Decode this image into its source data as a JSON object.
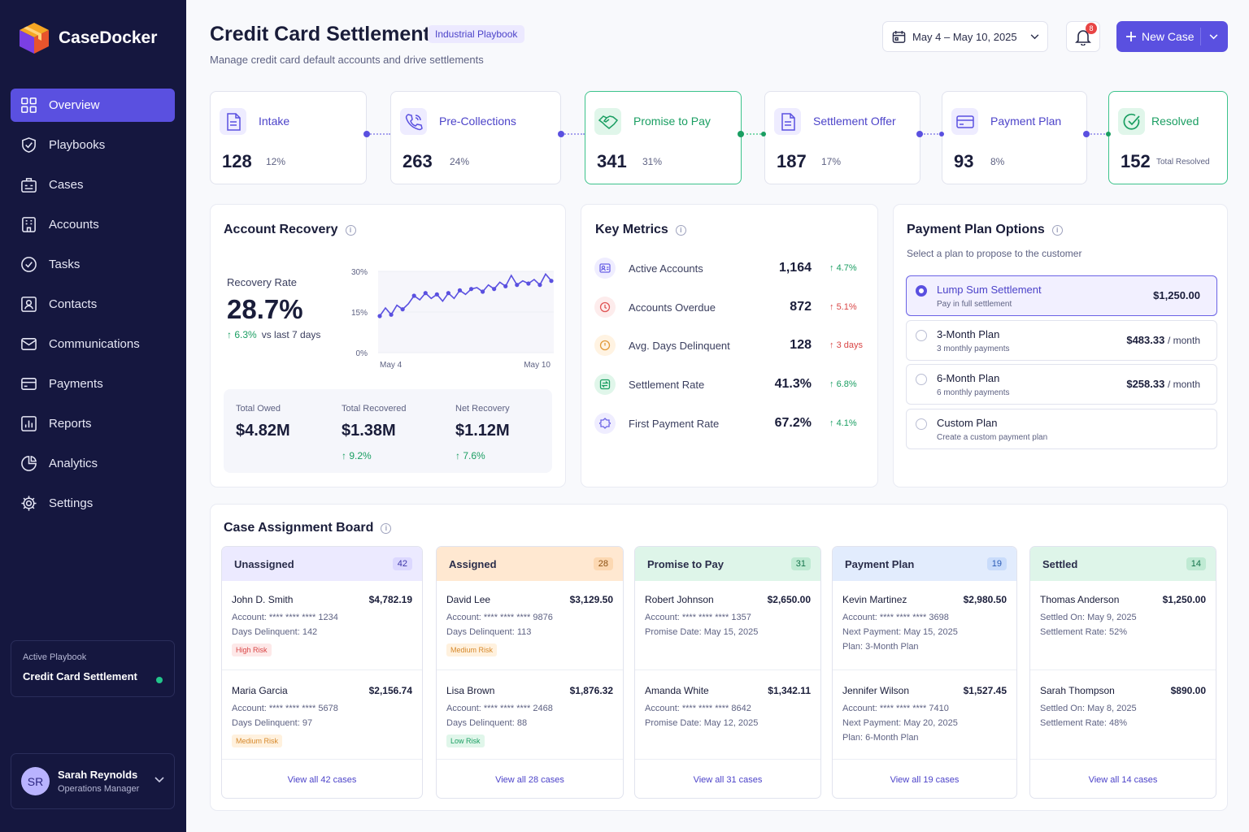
{
  "app": {
    "name": "CaseDocker"
  },
  "nav": {
    "items": [
      {
        "label": "Overview"
      },
      {
        "label": "Playbooks"
      },
      {
        "label": "Cases"
      },
      {
        "label": "Accounts"
      },
      {
        "label": "Tasks"
      },
      {
        "label": "Contacts"
      },
      {
        "label": "Communications"
      },
      {
        "label": "Payments"
      },
      {
        "label": "Reports"
      },
      {
        "label": "Analytics"
      },
      {
        "label": "Settings"
      }
    ]
  },
  "active_playbook": {
    "label": "Active Playbook",
    "name": "Credit Card Settlement"
  },
  "user": {
    "initials": "SR",
    "name": "Sarah Reynolds",
    "role": "Operations Manager"
  },
  "header": {
    "title": "Credit Card Settlement",
    "badge": "Industrial Playbook",
    "subtitle": "Manage credit card default accounts and drive settlements",
    "date_range": "May 4 – May 10, 2025",
    "notification_count": "8",
    "new_case_label": "New Case"
  },
  "pipeline": [
    {
      "name": "Intake",
      "count": "128",
      "pct": "12%"
    },
    {
      "name": "Pre-Collections",
      "count": "263",
      "pct": "24%"
    },
    {
      "name": "Promise to Pay",
      "count": "341",
      "pct": "31%"
    },
    {
      "name": "Settlement Offer",
      "count": "187",
      "pct": "17%"
    },
    {
      "name": "Payment Plan",
      "count": "93",
      "pct": "8%"
    },
    {
      "name": "Resolved",
      "count": "152",
      "pct": "Total Resolved"
    }
  ],
  "recovery": {
    "title": "Account Recovery",
    "rate_label": "Recovery Rate",
    "rate_value": "28.7%",
    "rate_delta": "6.3%",
    "rate_delta_suffix": "vs last 7 days",
    "total_owed_label": "Total Owed",
    "total_owed": "$4.82M",
    "total_recovered_label": "Total Recovered",
    "total_recovered": "$1.38M",
    "total_recovered_delta": "9.2%",
    "net_recovery_label": "Net Recovery",
    "net_recovery": "$1.12M",
    "net_recovery_delta": "7.6%"
  },
  "chart_data": {
    "type": "line",
    "x_tick_labels": [
      "May 4",
      "May 10"
    ],
    "y_tick_labels": [
      "30%",
      "15%",
      "0%"
    ],
    "ylim": [
      0,
      30
    ],
    "series": [
      {
        "values": [
          13.5,
          16.5,
          14,
          17.5,
          16,
          18,
          21,
          19.5,
          22,
          20,
          21.5,
          19,
          22,
          20,
          23,
          21.5,
          23.5,
          24,
          22.5,
          25,
          23.5,
          26,
          24.5,
          28.5,
          25,
          26.5,
          25.5,
          27,
          25,
          29,
          26.5
        ]
      }
    ],
    "color": "#5a50e0"
  },
  "key_metrics": {
    "title": "Key Metrics",
    "rows": [
      {
        "label": "Active Accounts",
        "value": "1,164",
        "delta": "4.7%"
      },
      {
        "label": "Accounts Overdue",
        "value": "872",
        "delta": "5.1%"
      },
      {
        "label": "Avg. Days Delinquent",
        "value": "128",
        "delta": "3 days"
      },
      {
        "label": "Settlement Rate",
        "value": "41.3%",
        "delta": "6.8%"
      },
      {
        "label": "First Payment Rate",
        "value": "67.2%",
        "delta": "4.1%"
      }
    ]
  },
  "payment_plans": {
    "title": "Payment Plan Options",
    "subtitle": "Select a plan to propose to the customer",
    "options": [
      {
        "name": "Lump Sum Settlement",
        "desc": "Pay in full settlement",
        "price": "$1,250.00",
        "unit": ""
      },
      {
        "name": "3-Month Plan",
        "desc": "3 monthly payments",
        "price": "$483.33",
        "unit": "/ month"
      },
      {
        "name": "6-Month Plan",
        "desc": "6 monthly payments",
        "price": "$258.33",
        "unit": "/ month"
      },
      {
        "name": "Custom Plan",
        "desc": "Create a custom payment plan",
        "price": "",
        "unit": ""
      }
    ]
  },
  "board": {
    "title": "Case Assignment Board",
    "columns": [
      {
        "name": "Unassigned",
        "count": "42",
        "view_all": "View all 42 cases",
        "cards": [
          {
            "name": "John D. Smith",
            "amount": "$4,782.19",
            "l1": "Account: **** **** **** 1234",
            "l2": "Days Delinquent: 142",
            "l3": "",
            "risk": "High Risk"
          },
          {
            "name": "Maria Garcia",
            "amount": "$2,156.74",
            "l1": "Account: **** **** **** 5678",
            "l2": "Days Delinquent: 97",
            "l3": "",
            "risk": "Medium Risk"
          }
        ]
      },
      {
        "name": "Assigned",
        "count": "28",
        "view_all": "View all 28 cases",
        "cards": [
          {
            "name": "David Lee",
            "amount": "$3,129.50",
            "l1": "Account: **** **** **** 9876",
            "l2": "Days Delinquent: 113",
            "l3": "",
            "risk": "Medium Risk"
          },
          {
            "name": "Lisa Brown",
            "amount": "$1,876.32",
            "l1": "Account: **** **** **** 2468",
            "l2": "Days Delinquent: 88",
            "l3": "",
            "risk": "Low Risk"
          }
        ]
      },
      {
        "name": "Promise to Pay",
        "count": "31",
        "view_all": "View all 31 cases",
        "cards": [
          {
            "name": "Robert Johnson",
            "amount": "$2,650.00",
            "l1": "Account: **** **** **** 1357",
            "l2": "Promise Date: May 15, 2025",
            "l3": "",
            "risk": ""
          },
          {
            "name": "Amanda White",
            "amount": "$1,342.11",
            "l1": "Account: **** **** **** 8642",
            "l2": "Promise Date: May 12, 2025",
            "l3": "",
            "risk": ""
          }
        ]
      },
      {
        "name": "Payment Plan",
        "count": "19",
        "view_all": "View all 19 cases",
        "cards": [
          {
            "name": "Kevin Martinez",
            "amount": "$2,980.50",
            "l1": "Account: **** **** **** 3698",
            "l2": "Next Payment: May 15, 2025",
            "l3": "Plan: 3-Month Plan",
            "risk": ""
          },
          {
            "name": "Jennifer Wilson",
            "amount": "$1,527.45",
            "l1": "Account: **** **** **** 7410",
            "l2": "Next Payment: May 20, 2025",
            "l3": "Plan: 6-Month Plan",
            "risk": ""
          }
        ]
      },
      {
        "name": "Settled",
        "count": "14",
        "view_all": "View all 14 cases",
        "cards": [
          {
            "name": "Thomas Anderson",
            "amount": "$1,250.00",
            "l1": "Settled On: May 9, 2025",
            "l2": "Settlement Rate: 52%",
            "l3": "",
            "risk": ""
          },
          {
            "name": "Sarah Thompson",
            "amount": "$890.00",
            "l1": "Settled On: May 8, 2025",
            "l2": "Settlement Rate: 48%",
            "l3": "",
            "risk": ""
          }
        ]
      }
    ]
  }
}
